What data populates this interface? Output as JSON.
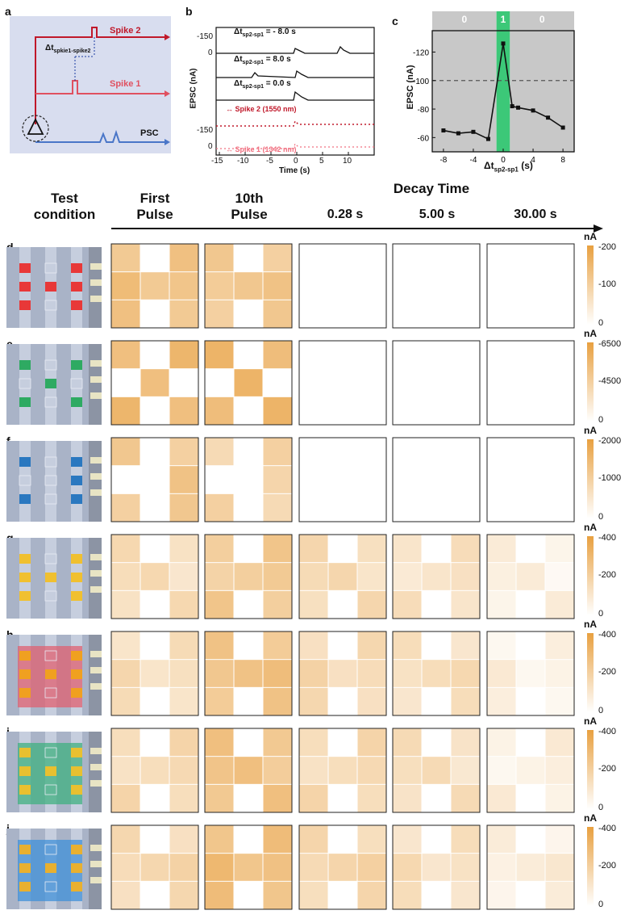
{
  "panel_a": {
    "letter": "a",
    "spike2_label": "Spike 2",
    "spike1_label": "Spike 1",
    "delta_label": "Δt",
    "delta_sub": "spkie1-spike2",
    "psc_label": "PSC",
    "colors": {
      "bg": "#d6dcee",
      "spike2": "#c0182a",
      "spike1": "#e05060",
      "psc": "#4a76c8"
    }
  },
  "panel_b": {
    "letter": "b",
    "ylabel": "EPSC (nA)",
    "xlabel": "Time (s)",
    "traces": [
      {
        "label": "Δt",
        "sub": "sp2-sp1",
        "value": "= - 8.0 s"
      },
      {
        "label": "Δt",
        "sub": "sp2-sp1",
        "value": "= 8.0 s"
      },
      {
        "label": "Δt",
        "sub": "sp2-sp1",
        "value": "= 0.0 s"
      }
    ],
    "legend": [
      {
        "label": "Spike 2 (1550 nm)",
        "color": "#c0182a"
      },
      {
        "label": "Spike 1 (1342 nm)",
        "color": "#f07080"
      }
    ],
    "yticks_top": [
      "-150",
      "0"
    ],
    "yticks_bottom": [
      "-150",
      "0"
    ],
    "xticks": [
      "-15",
      "-10",
      "-5",
      "0",
      "5",
      "10"
    ]
  },
  "panel_c": {
    "letter": "c",
    "ylabel": "EPSC (nA)",
    "xlabel": "Δt",
    "xlabel_sub": "sp2-sp1",
    "xlabel_unit": "(s)",
    "band_labels": [
      "0",
      "1",
      "0"
    ],
    "colors": {
      "gray": "#c8c8c8",
      "green": "#3cc878",
      "line": "#111111",
      "dash": "#555555"
    },
    "chart_data": {
      "type": "line",
      "x": [
        -8,
        -6,
        -4,
        -2,
        0,
        1.2,
        2,
        4,
        6,
        8
      ],
      "y": [
        -65,
        -63,
        -64,
        -59,
        -126,
        -82,
        -81,
        -79,
        -74,
        -67
      ],
      "xticks": [
        "-8",
        "-4",
        "0",
        "4",
        "8"
      ],
      "yticks": [
        "-120",
        "-100",
        "-80",
        "-60"
      ],
      "xlim": [
        -9.5,
        9.5
      ],
      "ylim": [
        -50,
        -135
      ],
      "threshold": -100
    }
  },
  "headers": {
    "test_condition": "Test condition",
    "first_pulse": "First Pulse",
    "tenth_pulse": "10th Pulse",
    "decay_time": "Decay Time",
    "t1": "0.28 s",
    "t2": "5.00 s",
    "t3": "30.00 s"
  },
  "rows": [
    {
      "letter": "d",
      "pattern": "H",
      "dot": "#e83838",
      "overlay": "",
      "unit": "nA",
      "scale": [
        "-200",
        "-100",
        "0"
      ],
      "levels": [
        0.62,
        0.55,
        0,
        0,
        0
      ]
    },
    {
      "letter": "e",
      "pattern": "X",
      "dot": "#2eaa62",
      "overlay": "",
      "unit": "nA",
      "scale": [
        "-6500",
        "-4500",
        "0"
      ],
      "levels": [
        0.68,
        0.7,
        0,
        0,
        0
      ]
    },
    {
      "letter": "f",
      "pattern": "X2",
      "dot": "#2a78c0",
      "overlay": "",
      "unit": "nA",
      "scale": [
        "-2000",
        "-1000",
        "0"
      ],
      "levels": [
        0.55,
        0.45,
        0,
        0,
        0
      ]
    },
    {
      "letter": "g",
      "pattern": "H",
      "dot": "#f0c030",
      "overlay": "",
      "unit": "nA",
      "scale": [
        "-400",
        "-200",
        "0"
      ],
      "levels": [
        0.32,
        0.52,
        0.34,
        0.28,
        0.12
      ]
    },
    {
      "letter": "h",
      "pattern": "H",
      "dot": "#f0a020",
      "overlay": "#e06070",
      "unit": "nA",
      "scale": [
        "-400",
        "-200",
        "0"
      ],
      "levels": [
        0.34,
        0.6,
        0.38,
        0.32,
        0.14
      ]
    },
    {
      "letter": "i",
      "pattern": "H",
      "dot": "#e8c030",
      "overlay": "#40b080",
      "unit": "nA",
      "scale": [
        "-400",
        "-200",
        "0"
      ],
      "levels": [
        0.36,
        0.58,
        0.36,
        0.3,
        0.14
      ]
    },
    {
      "letter": "j",
      "pattern": "H",
      "dot": "#e8b030",
      "overlay": "#4090d8",
      "unit": "nA",
      "scale": [
        "-400",
        "-200",
        "0"
      ],
      "levels": [
        0.38,
        0.66,
        0.4,
        0.32,
        0.16
      ]
    }
  ],
  "colors": {
    "heat": "#e8a040",
    "frame": "#222222",
    "chip": "#aab4c8"
  }
}
